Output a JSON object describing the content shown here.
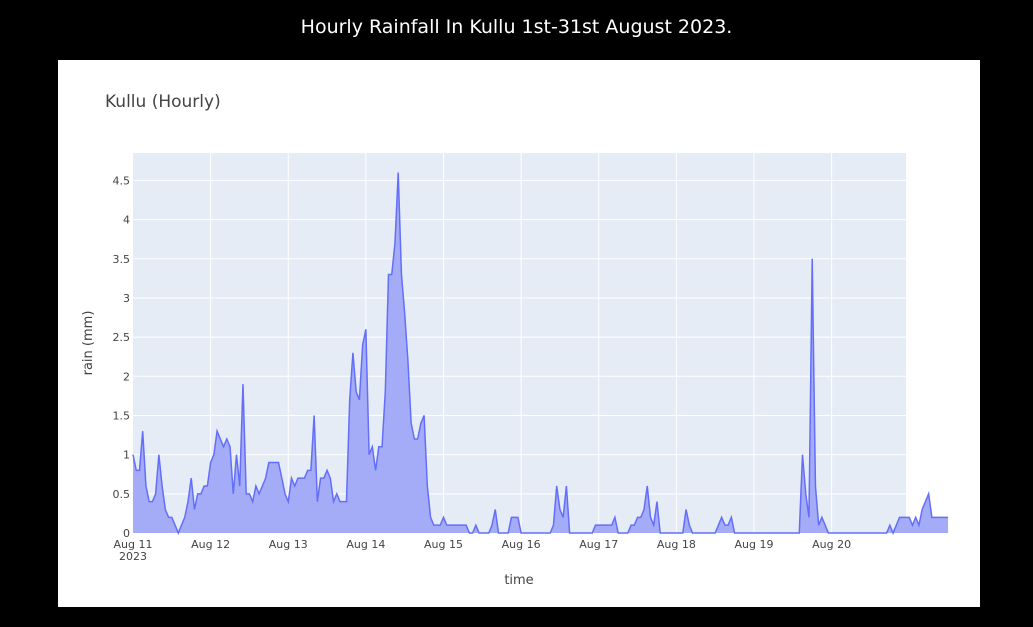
{
  "page": {
    "title": "Hourly Rainfall In Kullu 1st-31st August 2023."
  },
  "colors": {
    "background": "#000000",
    "card": "#ffffff",
    "plot_bg": "#e5ecf6",
    "grid": "#ffffff",
    "line": "#636efa",
    "fill": "#a5acf7"
  },
  "chart_data": {
    "type": "area",
    "title": "Kullu (Hourly)",
    "xlabel": "time",
    "ylabel": "rain (mm)",
    "ylim": [
      0,
      4.85
    ],
    "yticks": [
      {
        "value": 0,
        "label": "0"
      },
      {
        "value": 0.5,
        "label": "0.5"
      },
      {
        "value": 1,
        "label": "1"
      },
      {
        "value": 1.5,
        "label": "1.5"
      },
      {
        "value": 2,
        "label": "2"
      },
      {
        "value": 2.5,
        "label": "2.5"
      },
      {
        "value": 3,
        "label": "3"
      },
      {
        "value": 3.5,
        "label": "3.5"
      },
      {
        "value": 4,
        "label": "4"
      },
      {
        "value": 4.5,
        "label": "4.5"
      }
    ],
    "xlim": [
      "2023-08-11 00:00",
      "2023-08-20 23:00"
    ],
    "xticks": [
      {
        "value": "2023-08-11",
        "label": "Aug 11",
        "sublabel": "2023"
      },
      {
        "value": "2023-08-12",
        "label": "Aug 12"
      },
      {
        "value": "2023-08-13",
        "label": "Aug 13"
      },
      {
        "value": "2023-08-14",
        "label": "Aug 14"
      },
      {
        "value": "2023-08-15",
        "label": "Aug 15"
      },
      {
        "value": "2023-08-16",
        "label": "Aug 16"
      },
      {
        "value": "2023-08-17",
        "label": "Aug 17"
      },
      {
        "value": "2023-08-18",
        "label": "Aug 18"
      },
      {
        "value": "2023-08-19",
        "label": "Aug 19"
      },
      {
        "value": "2023-08-20",
        "label": "Aug 20"
      }
    ],
    "grid": true,
    "x_start": "2023-08-11 00:00",
    "x_step": "1 hour",
    "values": [
      1.0,
      0.8,
      0.8,
      1.3,
      0.6,
      0.4,
      0.4,
      0.5,
      1.0,
      0.6,
      0.3,
      0.2,
      0.2,
      0.1,
      0.0,
      0.1,
      0.2,
      0.4,
      0.7,
      0.3,
      0.5,
      0.5,
      0.6,
      0.6,
      0.9,
      1.0,
      1.3,
      1.2,
      1.1,
      1.2,
      1.1,
      0.5,
      1.0,
      0.6,
      1.9,
      0.5,
      0.5,
      0.4,
      0.6,
      0.5,
      0.6,
      0.7,
      0.9,
      0.9,
      0.9,
      0.9,
      0.7,
      0.5,
      0.4,
      0.7,
      0.6,
      0.7,
      0.7,
      0.7,
      0.8,
      0.8,
      1.5,
      0.4,
      0.7,
      0.7,
      0.8,
      0.7,
      0.4,
      0.5,
      0.4,
      0.4,
      0.4,
      1.7,
      2.3,
      1.8,
      1.7,
      2.4,
      2.6,
      1.0,
      1.1,
      0.8,
      1.1,
      1.1,
      1.8,
      3.3,
      3.3,
      3.7,
      4.6,
      3.3,
      2.8,
      2.2,
      1.4,
      1.2,
      1.2,
      1.4,
      1.5,
      0.6,
      0.2,
      0.1,
      0.1,
      0.1,
      0.2,
      0.1,
      0.1,
      0.1,
      0.1,
      0.1,
      0.1,
      0.1,
      0.0,
      0.0,
      0.1,
      0.0,
      0.0,
      0.0,
      0.0,
      0.1,
      0.3,
      0.0,
      0.0,
      0.0,
      0.0,
      0.2,
      0.2,
      0.2,
      0.0,
      0.0,
      0.0,
      0.0,
      0.0,
      0.0,
      0.0,
      0.0,
      0.0,
      0.0,
      0.1,
      0.6,
      0.3,
      0.2,
      0.6,
      0.0,
      0.0,
      0.0,
      0.0,
      0.0,
      0.0,
      0.0,
      0.0,
      0.1,
      0.1,
      0.1,
      0.1,
      0.1,
      0.1,
      0.2,
      0.0,
      0.0,
      0.0,
      0.0,
      0.1,
      0.1,
      0.2,
      0.2,
      0.3,
      0.6,
      0.2,
      0.1,
      0.4,
      0.0,
      0.0,
      0.0,
      0.0,
      0.0,
      0.0,
      0.0,
      0.0,
      0.3,
      0.1,
      0.0,
      0.0,
      0.0,
      0.0,
      0.0,
      0.0,
      0.0,
      0.0,
      0.1,
      0.2,
      0.1,
      0.1,
      0.2,
      0.0,
      0.0,
      0.0,
      0.0,
      0.0,
      0.0,
      0.0,
      0.0,
      0.0,
      0.0,
      0.0,
      0.0,
      0.0,
      0.0,
      0.0,
      0.0,
      0.0,
      0.0,
      0.0,
      0.0,
      0.0,
      1.0,
      0.5,
      0.2,
      3.5,
      0.6,
      0.1,
      0.2,
      0.1,
      0.0,
      0.0,
      0.0,
      0.0,
      0.0,
      0.0,
      0.0,
      0.0,
      0.0,
      0.0,
      0.0,
      0.0,
      0.0,
      0.0,
      0.0,
      0.0,
      0.0,
      0.0,
      0.0,
      0.1,
      0.0,
      0.1,
      0.2,
      0.2,
      0.2,
      0.2,
      0.1,
      0.2,
      0.1,
      0.3,
      0.4,
      0.5,
      0.2,
      0.2,
      0.2,
      0.2,
      0.2,
      0.2
    ]
  }
}
